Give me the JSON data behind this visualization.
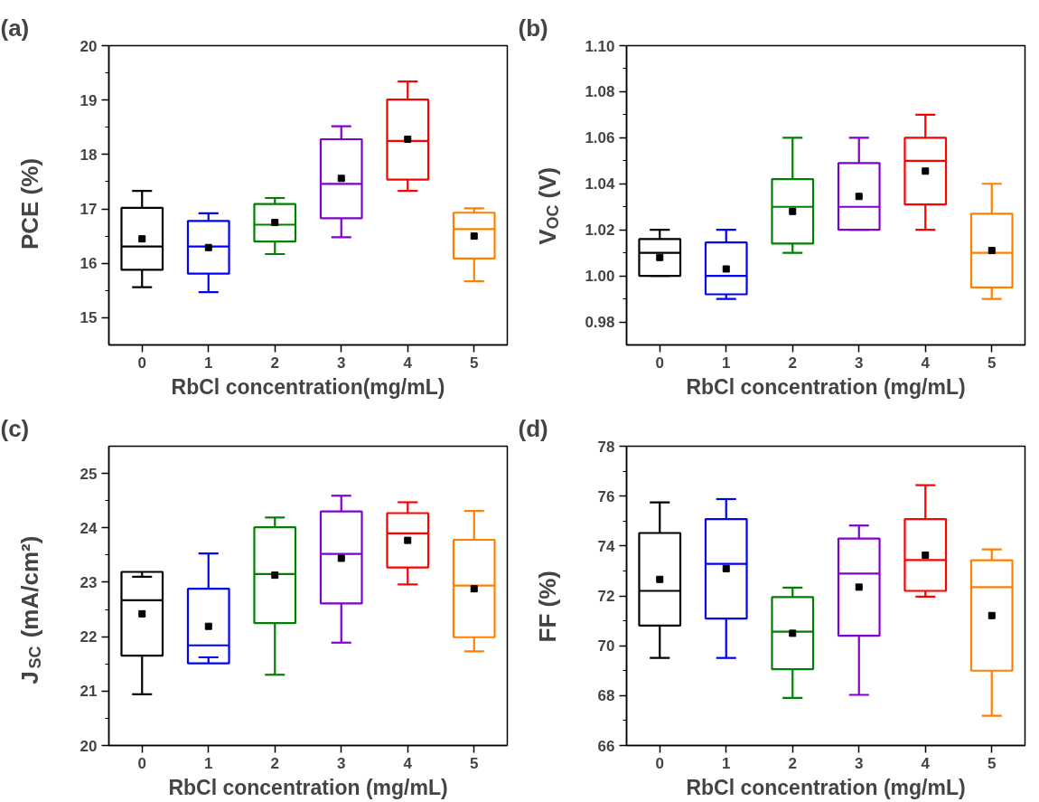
{
  "chart_data": [
    {
      "type": "box",
      "title": "(a)",
      "xlabel": "RbCl concentration(mg/mL)",
      "ylabel": "PCE (%)",
      "categories": [
        "0",
        "1",
        "2",
        "3",
        "4",
        "5"
      ],
      "colors": [
        "#000000",
        "#0000ff",
        "#008000",
        "#8000d0",
        "#ff0000",
        "#ff8000"
      ],
      "ylim": [
        14.5,
        20
      ],
      "yticks": [
        15,
        16,
        17,
        18,
        19,
        20
      ],
      "grid": false,
      "boxes": [
        {
          "low": 15.56,
          "q1": 15.88,
          "median": 16.31,
          "q3": 17.02,
          "high": 17.33,
          "mean": 16.45
        },
        {
          "low": 15.47,
          "q1": 15.81,
          "median": 16.31,
          "q3": 16.78,
          "high": 16.92,
          "mean": 16.29
        },
        {
          "low": 16.17,
          "q1": 16.4,
          "median": 16.71,
          "q3": 17.09,
          "high": 17.2,
          "mean": 16.75
        },
        {
          "low": 16.48,
          "q1": 16.83,
          "median": 17.46,
          "q3": 18.28,
          "high": 18.52,
          "mean": 17.56
        },
        {
          "low": 17.33,
          "q1": 17.54,
          "median": 18.25,
          "q3": 19.01,
          "high": 19.34,
          "mean": 18.28
        },
        {
          "low": 15.67,
          "q1": 16.09,
          "median": 16.63,
          "q3": 16.93,
          "high": 17.01,
          "mean": 16.5
        }
      ]
    },
    {
      "type": "box",
      "title": "(b)",
      "xlabel": "RbCl concentration (mg/mL)",
      "ylabel": "V$_{OC}$ (V)",
      "categories": [
        "0",
        "1",
        "2",
        "3",
        "4",
        "5"
      ],
      "colors": [
        "#000000",
        "#0000ff",
        "#008000",
        "#8000d0",
        "#ff0000",
        "#ff8000"
      ],
      "ylim": [
        0.97,
        1.1
      ],
      "yticks": [
        {
          "value": 0.98,
          "label": "0.98"
        },
        {
          "value": 1.0,
          "label": "1.00"
        },
        {
          "value": 1.02,
          "label": "1.02"
        },
        {
          "value": 1.04,
          "label": "1.04"
        },
        {
          "value": 1.06,
          "label": "1.06"
        },
        {
          "value": 1.08,
          "label": "1.08"
        },
        {
          "value": 1.1,
          "label": "1.10"
        }
      ],
      "grid": false,
      "boxes": [
        {
          "low": 1.0,
          "q1": 1.0,
          "median": 1.01,
          "q3": 1.016,
          "high": 1.02,
          "mean": 1.008
        },
        {
          "low": 0.99,
          "q1": 0.992,
          "median": 1.0,
          "q3": 1.0145,
          "high": 1.02,
          "mean": 1.003
        },
        {
          "low": 1.01,
          "q1": 1.014,
          "median": 1.03,
          "q3": 1.042,
          "high": 1.06,
          "mean": 1.028
        },
        {
          "low": 1.02,
          "q1": 1.02,
          "median": 1.03,
          "q3": 1.049,
          "high": 1.06,
          "mean": 1.0345
        },
        {
          "low": 1.02,
          "q1": 1.031,
          "median": 1.05,
          "q3": 1.06,
          "high": 1.07,
          "mean": 1.0455
        },
        {
          "low": 0.99,
          "q1": 0.995,
          "median": 1.01,
          "q3": 1.027,
          "high": 1.04,
          "mean": 1.011
        }
      ]
    },
    {
      "type": "box",
      "title": "(c)",
      "xlabel": "RbCl concentration (mg/mL)",
      "ylabel": "J$_{SC}$ (mA/cm²)",
      "categories": [
        "0",
        "1",
        "2",
        "3",
        "4",
        "5"
      ],
      "colors": [
        "#000000",
        "#0000ff",
        "#008000",
        "#8000d0",
        "#ff0000",
        "#ff8000"
      ],
      "ylim": [
        20,
        25.5
      ],
      "yticks": [
        20,
        21,
        22,
        23,
        24,
        25
      ],
      "grid": false,
      "boxes": [
        {
          "low": 20.94,
          "q1": 21.65,
          "median": 22.67,
          "q3": 23.19,
          "high": 23.1,
          "mean": 22.42
        },
        {
          "low": 21.62,
          "q1": 21.51,
          "median": 21.84,
          "q3": 22.88,
          "high": 23.53,
          "mean": 22.19
        },
        {
          "low": 21.3,
          "q1": 22.25,
          "median": 23.15,
          "q3": 24.01,
          "high": 24.19,
          "mean": 23.13
        },
        {
          "low": 21.89,
          "q1": 22.61,
          "median": 23.52,
          "q3": 24.3,
          "high": 24.59,
          "mean": 23.44
        },
        {
          "low": 22.96,
          "q1": 23.27,
          "median": 23.9,
          "q3": 24.27,
          "high": 24.47,
          "mean": 23.77
        },
        {
          "low": 21.73,
          "q1": 21.99,
          "median": 22.94,
          "q3": 23.78,
          "high": 24.31,
          "mean": 22.88
        }
      ]
    },
    {
      "type": "box",
      "title": "(d)",
      "xlabel": "RbCl concentration (mg/mL)",
      "ylabel": "FF (%)",
      "categories": [
        "0",
        "1",
        "2",
        "3",
        "4",
        "5"
      ],
      "colors": [
        "#000000",
        "#0000ff",
        "#008000",
        "#8000d0",
        "#ff0000",
        "#ff8000"
      ],
      "ylim": [
        66,
        78
      ],
      "yticks": [
        66,
        68,
        70,
        72,
        74,
        76,
        78
      ],
      "grid": false,
      "boxes": [
        {
          "low": 69.51,
          "q1": 70.81,
          "median": 72.2,
          "q3": 74.52,
          "high": 75.75,
          "mean": 72.66
        },
        {
          "low": 69.51,
          "q1": 71.09,
          "median": 73.28,
          "q3": 75.08,
          "high": 75.88,
          "mean": 73.09
        },
        {
          "low": 67.91,
          "q1": 69.06,
          "median": 70.56,
          "q3": 71.95,
          "high": 72.33,
          "mean": 70.5
        },
        {
          "low": 68.03,
          "q1": 70.4,
          "median": 72.89,
          "q3": 74.3,
          "high": 74.82,
          "mean": 72.35
        },
        {
          "low": 71.97,
          "q1": 72.2,
          "median": 73.44,
          "q3": 75.08,
          "high": 76.44,
          "mean": 73.63
        },
        {
          "low": 67.19,
          "q1": 69.0,
          "median": 72.35,
          "q3": 73.43,
          "high": 73.86,
          "mean": 71.21
        }
      ]
    }
  ]
}
